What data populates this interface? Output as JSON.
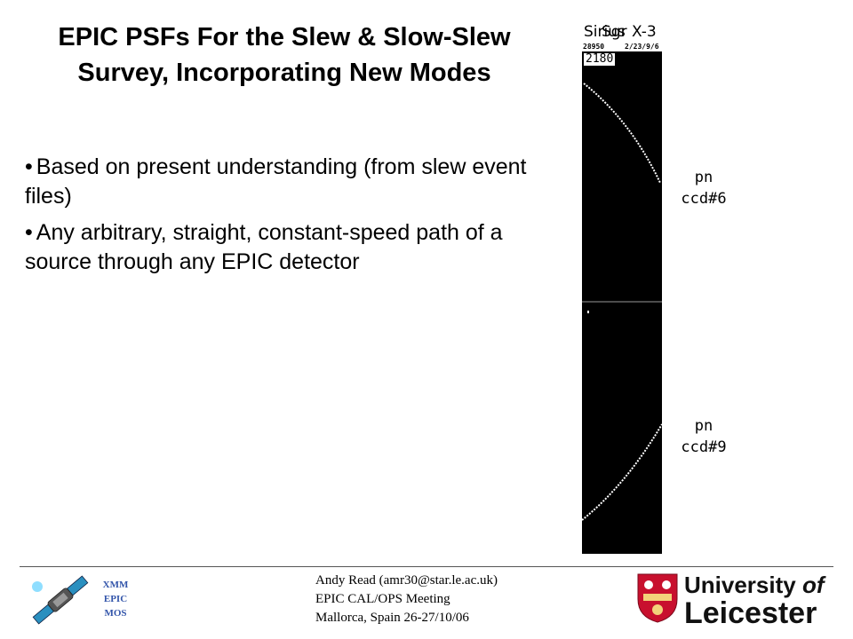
{
  "slide": {
    "title_line1": "EPIC PSFs For the Slew & Slow-Slew",
    "title_line2": "Survey, Incorporating New Modes",
    "bullets": [
      "Based on present understanding (from slew event files)",
      "Any arbitrary, straight, constant-speed path of a source through any EPIC detector"
    ]
  },
  "figure": {
    "header_overlap_a": "Sirius",
    "header_overlap_b": "Sgr X-3",
    "small_left": "28950",
    "small_right": "2/23/9/6",
    "count": "2180",
    "ccd_upper_line1": "pn",
    "ccd_upper_line2": "ccd#6",
    "ccd_lower_line1": "pn",
    "ccd_lower_line2": "ccd#9",
    "background_color": "#000000",
    "track_color": "#ffffff"
  },
  "footer": {
    "line1": "Andy Read (amr30@star.le.ac.uk)",
    "line2": "EPIC CAL/OPS Meeting",
    "line3": "Mallorca, Spain 26-27/10/06",
    "logo_left_lines": [
      "XMM",
      "EPIC",
      "MOS"
    ],
    "uni_line1_a": "University",
    "uni_line1_b": "of",
    "uni_line2": "Leicester",
    "uni_red": "#c8102e"
  }
}
